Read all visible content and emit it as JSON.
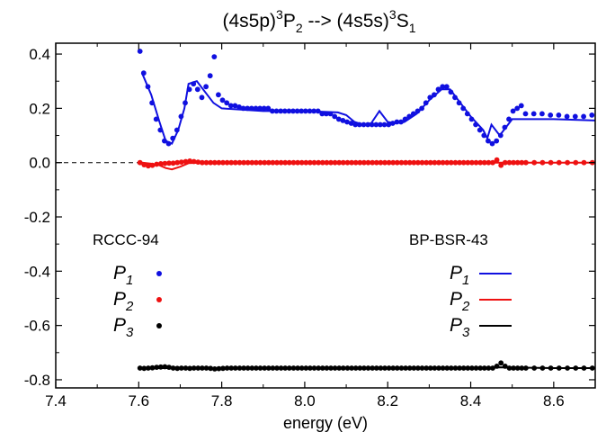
{
  "chart_data": {
    "type": "line",
    "title": {
      "base1": "(4s5p)",
      "sup1": "3",
      "mid": "P",
      "sub1": "2",
      "arrow": " --> (4s5s)",
      "sup2": "3",
      "end": "S",
      "sub2": "1"
    },
    "xlabel": "energy (eV)",
    "ylabel": "",
    "xlim": [
      7.4,
      8.7
    ],
    "ylim": [
      -0.83,
      0.44
    ],
    "xticks": [
      7.4,
      7.6,
      7.8,
      8.0,
      8.2,
      8.4,
      8.6
    ],
    "xtick_labels": [
      "7.4",
      "7.6",
      "7.8",
      "8.0",
      "8.2",
      "8.4",
      "8.6"
    ],
    "yticks": [
      0.4,
      0.2,
      0.0,
      -0.2,
      -0.4,
      -0.6,
      -0.8
    ],
    "ytick_labels": [
      "0.4",
      "0.2",
      "0.0",
      "-0.2",
      "-0.4",
      "-0.6",
      "-0.8"
    ],
    "zero_line": {
      "y": 0.0,
      "style": "dashed",
      "color": "#000000",
      "x_end": 7.6
    },
    "grid": false,
    "colors": {
      "p1": "#1010e0",
      "p2": "#ee1111",
      "p3": "#000000"
    },
    "legend_left": {
      "heading": "RCCC-94",
      "entries": [
        {
          "base": "P",
          "sub": "1",
          "marker": "dot",
          "color": "#1010e0"
        },
        {
          "base": "P",
          "sub": "2",
          "marker": "dot",
          "color": "#ee1111"
        },
        {
          "base": "P",
          "sub": "3",
          "marker": "dot",
          "color": "#000000"
        }
      ]
    },
    "legend_right": {
      "heading": "BP-BSR-43",
      "entries": [
        {
          "base": "P",
          "sub": "1",
          "marker": "line",
          "color": "#1010e0"
        },
        {
          "base": "P",
          "sub": "2",
          "marker": "line",
          "color": "#ee1111"
        },
        {
          "base": "P",
          "sub": "3",
          "marker": "line",
          "color": "#000000"
        }
      ]
    },
    "series_points": [
      {
        "name": "P1",
        "group": "RCCC-94",
        "color": "#1010e0",
        "x": [
          7.603,
          7.612,
          7.622,
          7.632,
          7.642,
          7.652,
          7.662,
          7.672,
          7.682,
          7.692,
          7.702,
          7.712,
          7.722,
          7.732,
          7.742,
          7.752,
          7.762,
          7.772,
          7.782,
          7.792,
          7.802,
          7.812,
          7.822,
          7.832,
          7.842,
          7.852,
          7.862,
          7.872,
          7.882,
          7.892,
          7.902,
          7.912,
          7.922,
          7.932,
          7.942,
          7.952,
          7.962,
          7.972,
          7.982,
          7.992,
          8.002,
          8.012,
          8.022,
          8.032,
          8.042,
          8.052,
          8.062,
          8.072,
          8.082,
          8.092,
          8.102,
          8.112,
          8.122,
          8.132,
          8.142,
          8.152,
          8.162,
          8.172,
          8.182,
          8.192,
          8.202,
          8.212,
          8.222,
          8.232,
          8.242,
          8.252,
          8.262,
          8.272,
          8.282,
          8.292,
          8.302,
          8.312,
          8.322,
          8.332,
          8.342,
          8.352,
          8.362,
          8.372,
          8.382,
          8.392,
          8.402,
          8.412,
          8.422,
          8.432,
          8.442,
          8.452,
          8.462,
          8.472,
          8.482,
          8.492,
          8.502,
          8.512,
          8.522,
          8.532,
          8.552,
          8.572,
          8.592,
          8.612,
          8.632,
          8.652,
          8.672,
          8.692
        ],
        "y": [
          0.41,
          0.33,
          0.28,
          0.22,
          0.16,
          0.12,
          0.08,
          0.07,
          0.09,
          0.12,
          0.17,
          0.22,
          0.27,
          0.29,
          0.27,
          0.24,
          0.28,
          0.32,
          0.39,
          0.25,
          0.23,
          0.22,
          0.21,
          0.21,
          0.205,
          0.2,
          0.2,
          0.2,
          0.2,
          0.2,
          0.2,
          0.2,
          0.19,
          0.19,
          0.19,
          0.19,
          0.19,
          0.19,
          0.19,
          0.19,
          0.19,
          0.19,
          0.19,
          0.19,
          0.18,
          0.18,
          0.18,
          0.17,
          0.16,
          0.155,
          0.15,
          0.145,
          0.14,
          0.14,
          0.14,
          0.14,
          0.14,
          0.14,
          0.14,
          0.14,
          0.14,
          0.145,
          0.15,
          0.15,
          0.16,
          0.17,
          0.18,
          0.19,
          0.2,
          0.22,
          0.24,
          0.25,
          0.27,
          0.28,
          0.28,
          0.26,
          0.24,
          0.22,
          0.2,
          0.18,
          0.16,
          0.14,
          0.12,
          0.1,
          0.08,
          0.07,
          0.08,
          0.1,
          0.13,
          0.16,
          0.19,
          0.2,
          0.21,
          0.18,
          0.18,
          0.18,
          0.175,
          0.175,
          0.17,
          0.17,
          0.17,
          0.175
        ]
      },
      {
        "name": "P2",
        "group": "RCCC-94",
        "color": "#ee1111",
        "x": [
          7.603,
          7.613,
          7.623,
          7.633,
          7.643,
          7.653,
          7.663,
          7.673,
          7.683,
          7.693,
          7.703,
          7.713,
          7.723,
          7.733,
          7.743,
          7.753,
          7.763,
          7.773,
          7.783,
          7.793,
          7.803,
          7.813,
          7.823,
          7.833,
          7.843,
          7.853,
          7.863,
          7.873,
          7.883,
          7.893,
          7.903,
          7.913,
          7.923,
          7.933,
          7.943,
          7.953,
          7.963,
          7.973,
          7.983,
          7.993,
          8.003,
          8.013,
          8.023,
          8.033,
          8.043,
          8.053,
          8.063,
          8.073,
          8.083,
          8.093,
          8.103,
          8.113,
          8.123,
          8.133,
          8.143,
          8.153,
          8.163,
          8.173,
          8.183,
          8.193,
          8.203,
          8.213,
          8.223,
          8.233,
          8.243,
          8.253,
          8.263,
          8.273,
          8.283,
          8.293,
          8.303,
          8.313,
          8.323,
          8.333,
          8.343,
          8.353,
          8.363,
          8.373,
          8.383,
          8.393,
          8.403,
          8.413,
          8.423,
          8.433,
          8.443,
          8.453,
          8.463,
          8.473,
          8.483,
          8.493,
          8.503,
          8.513,
          8.523,
          8.533,
          8.553,
          8.573,
          8.593,
          8.613,
          8.633,
          8.653,
          8.673,
          8.693
        ],
        "y": [
          0.0,
          -0.008,
          -0.012,
          -0.01,
          -0.006,
          -0.004,
          -0.003,
          -0.002,
          -0.002,
          0.0,
          0.002,
          0.004,
          0.006,
          0.004,
          0.002,
          0.0,
          0.0,
          0.0,
          0.0,
          0.0,
          0.0,
          0.0,
          0.0,
          0.0,
          0.0,
          0.0,
          0.0,
          0.0,
          0.0,
          0.0,
          0.0,
          0.0,
          0.0,
          0.0,
          0.0,
          0.0,
          0.0,
          0.0,
          0.0,
          0.0,
          0.0,
          0.0,
          0.0,
          0.0,
          0.0,
          0.0,
          0.0,
          0.0,
          0.0,
          0.0,
          0.0,
          0.0,
          0.0,
          0.0,
          0.0,
          0.0,
          0.0,
          0.0,
          0.0,
          0.0,
          0.0,
          0.0,
          0.0,
          0.0,
          0.0,
          0.0,
          0.0,
          0.0,
          0.0,
          0.0,
          0.0,
          0.0,
          0.0,
          0.0,
          0.0,
          0.0,
          0.0,
          0.0,
          0.0,
          0.0,
          0.0,
          0.0,
          0.0,
          0.0,
          0.0,
          0.0,
          0.01,
          -0.01,
          0.0,
          0.0,
          0.0,
          0.0,
          0.0,
          0.0,
          0.0,
          0.0,
          0.0,
          0.0,
          0.0,
          0.0,
          0.0,
          0.0
        ]
      },
      {
        "name": "P3",
        "group": "RCCC-94",
        "color": "#000000",
        "x": [
          7.603,
          7.613,
          7.623,
          7.633,
          7.643,
          7.653,
          7.663,
          7.673,
          7.683,
          7.693,
          7.703,
          7.713,
          7.723,
          7.733,
          7.743,
          7.753,
          7.763,
          7.773,
          7.783,
          7.793,
          7.803,
          7.813,
          7.823,
          7.833,
          7.843,
          7.853,
          7.863,
          7.873,
          7.883,
          7.893,
          7.903,
          7.913,
          7.923,
          7.933,
          7.943,
          7.953,
          7.963,
          7.973,
          7.983,
          7.993,
          8.003,
          8.013,
          8.023,
          8.033,
          8.043,
          8.053,
          8.063,
          8.073,
          8.083,
          8.093,
          8.103,
          8.113,
          8.123,
          8.133,
          8.143,
          8.153,
          8.163,
          8.173,
          8.183,
          8.193,
          8.203,
          8.213,
          8.223,
          8.233,
          8.243,
          8.253,
          8.263,
          8.273,
          8.283,
          8.293,
          8.303,
          8.313,
          8.323,
          8.333,
          8.343,
          8.353,
          8.363,
          8.373,
          8.383,
          8.393,
          8.403,
          8.413,
          8.423,
          8.433,
          8.443,
          8.453,
          8.463,
          8.473,
          8.483,
          8.493,
          8.503,
          8.513,
          8.523,
          8.533,
          8.553,
          8.573,
          8.593,
          8.613,
          8.633,
          8.653,
          8.673,
          8.693
        ],
        "y": [
          -0.757,
          -0.758,
          -0.757,
          -0.756,
          -0.754,
          -0.753,
          -0.752,
          -0.754,
          -0.757,
          -0.758,
          -0.757,
          -0.757,
          -0.758,
          -0.757,
          -0.757,
          -0.757,
          -0.757,
          -0.758,
          -0.76,
          -0.759,
          -0.758,
          -0.757,
          -0.757,
          -0.757,
          -0.757,
          -0.757,
          -0.757,
          -0.757,
          -0.757,
          -0.757,
          -0.757,
          -0.757,
          -0.757,
          -0.757,
          -0.757,
          -0.757,
          -0.757,
          -0.757,
          -0.757,
          -0.757,
          -0.757,
          -0.757,
          -0.757,
          -0.757,
          -0.757,
          -0.757,
          -0.757,
          -0.757,
          -0.757,
          -0.757,
          -0.757,
          -0.757,
          -0.757,
          -0.757,
          -0.757,
          -0.757,
          -0.757,
          -0.757,
          -0.757,
          -0.757,
          -0.757,
          -0.757,
          -0.757,
          -0.757,
          -0.757,
          -0.757,
          -0.757,
          -0.757,
          -0.757,
          -0.757,
          -0.757,
          -0.757,
          -0.757,
          -0.757,
          -0.757,
          -0.757,
          -0.757,
          -0.757,
          -0.757,
          -0.757,
          -0.757,
          -0.757,
          -0.757,
          -0.757,
          -0.757,
          -0.757,
          -0.75,
          -0.738,
          -0.75,
          -0.757,
          -0.757,
          -0.757,
          -0.757,
          -0.757,
          -0.757,
          -0.757,
          -0.757,
          -0.757,
          -0.757,
          -0.757,
          -0.757,
          -0.757
        ]
      }
    ],
    "series_lines": [
      {
        "name": "P1",
        "group": "BP-BSR-43",
        "color": "#1010e0",
        "x": [
          7.608,
          7.63,
          7.65,
          7.665,
          7.68,
          7.695,
          7.71,
          7.72,
          7.74,
          7.76,
          7.78,
          7.8,
          7.85,
          7.9,
          8.0,
          8.08,
          8.1,
          8.12,
          8.14,
          8.16,
          8.18,
          8.2,
          8.22,
          8.24,
          8.27,
          8.3,
          8.33,
          8.35,
          8.37,
          8.4,
          8.43,
          8.44,
          8.45,
          8.47,
          8.5,
          8.6,
          8.7
        ],
        "y": [
          0.33,
          0.25,
          0.15,
          0.08,
          0.07,
          0.12,
          0.2,
          0.29,
          0.3,
          0.26,
          0.22,
          0.2,
          0.195,
          0.19,
          0.19,
          0.185,
          0.175,
          0.15,
          0.14,
          0.145,
          0.19,
          0.15,
          0.145,
          0.15,
          0.18,
          0.23,
          0.27,
          0.27,
          0.23,
          0.17,
          0.12,
          0.09,
          0.14,
          0.1,
          0.16,
          0.16,
          0.155
        ]
      },
      {
        "name": "P2",
        "group": "BP-BSR-43",
        "color": "#ee1111",
        "x": [
          7.608,
          7.63,
          7.65,
          7.665,
          7.68,
          7.7,
          7.72,
          7.75,
          7.8,
          8.0,
          8.2,
          8.4,
          8.6,
          8.7
        ],
        "y": [
          0.0,
          -0.004,
          -0.01,
          -0.02,
          -0.025,
          -0.015,
          -0.002,
          0.0,
          0.0,
          0.0,
          0.0,
          0.0,
          0.0,
          0.0
        ]
      },
      {
        "name": "P3",
        "group": "BP-BSR-43",
        "color": "#000000",
        "x": [
          7.608,
          7.65,
          7.7,
          7.8,
          8.0,
          8.2,
          8.4,
          8.47,
          8.6,
          8.7
        ],
        "y": [
          -0.757,
          -0.757,
          -0.757,
          -0.758,
          -0.757,
          -0.757,
          -0.757,
          -0.754,
          -0.757,
          -0.757
        ]
      }
    ]
  }
}
